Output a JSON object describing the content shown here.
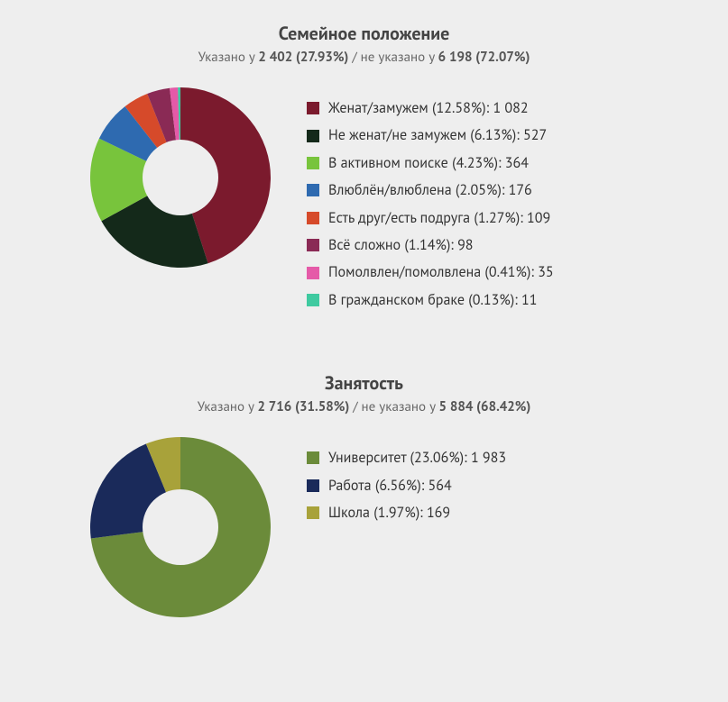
{
  "background_color": "#eeeeee",
  "text_color": "#333333",
  "title_color": "#444444",
  "subtitle_color": "#666666",
  "title_fontsize": 20,
  "subtitle_fontsize": 15,
  "legend_fontsize": 16,
  "sections": [
    {
      "title": "Семейное положение",
      "sub_prefix": "Указано у ",
      "sub_specified": "2 402 (27.93%)",
      "sub_sep": " / не указано у ",
      "sub_unspecified": "6 198 (72.07%)",
      "donut": {
        "outer_r": 100,
        "inner_r": 42,
        "bg": "#eeeeee",
        "start_deg": -90
      },
      "slices": [
        {
          "label": "Женат/замужем",
          "pct": 12.58,
          "count": "1 082",
          "color": "#7b1a2d",
          "share": 45.05
        },
        {
          "label": "Не женат/не замужем",
          "pct": 6.13,
          "count": "527",
          "color": "#14291a",
          "share": 21.94
        },
        {
          "label": "В активном поиске",
          "pct": 4.23,
          "count": "364",
          "color": "#78c43c",
          "share": 15.15
        },
        {
          "label": "Влюблён/влюблена",
          "pct": 2.05,
          "count": "176",
          "color": "#2e6ab0",
          "share": 7.33
        },
        {
          "label": "Есть друг/есть подруга",
          "pct": 1.27,
          "count": "109",
          "color": "#d64a2a",
          "share": 4.54
        },
        {
          "label": "Всё сложно",
          "pct": 1.14,
          "count": "98",
          "color": "#8a2a55",
          "share": 4.08
        },
        {
          "label": "Помолвлен/помолвлена",
          "pct": 0.41,
          "count": "35",
          "color": "#e55aa8",
          "share": 1.46
        },
        {
          "label": "В гражданском браке",
          "pct": 0.13,
          "count": "11",
          "color": "#3fcaa0",
          "share": 0.46
        }
      ]
    },
    {
      "title": "Занятость",
      "sub_prefix": "Указано у ",
      "sub_specified": "2 716 (31.58%)",
      "sub_sep": " / не указано у ",
      "sub_unspecified": "5 884 (68.42%)",
      "donut": {
        "outer_r": 100,
        "inner_r": 42,
        "bg": "#eeeeee",
        "start_deg": -90
      },
      "slices": [
        {
          "label": "Университет",
          "pct": 23.06,
          "count": "1 983",
          "color": "#6b8b3a",
          "share": 73.01
        },
        {
          "label": "Работа",
          "pct": 6.56,
          "count": "564",
          "color": "#1a2a5a",
          "share": 20.77
        },
        {
          "label": "Школа",
          "pct": 1.97,
          "count": "169",
          "color": "#a8a23a",
          "share": 6.22
        }
      ]
    }
  ]
}
